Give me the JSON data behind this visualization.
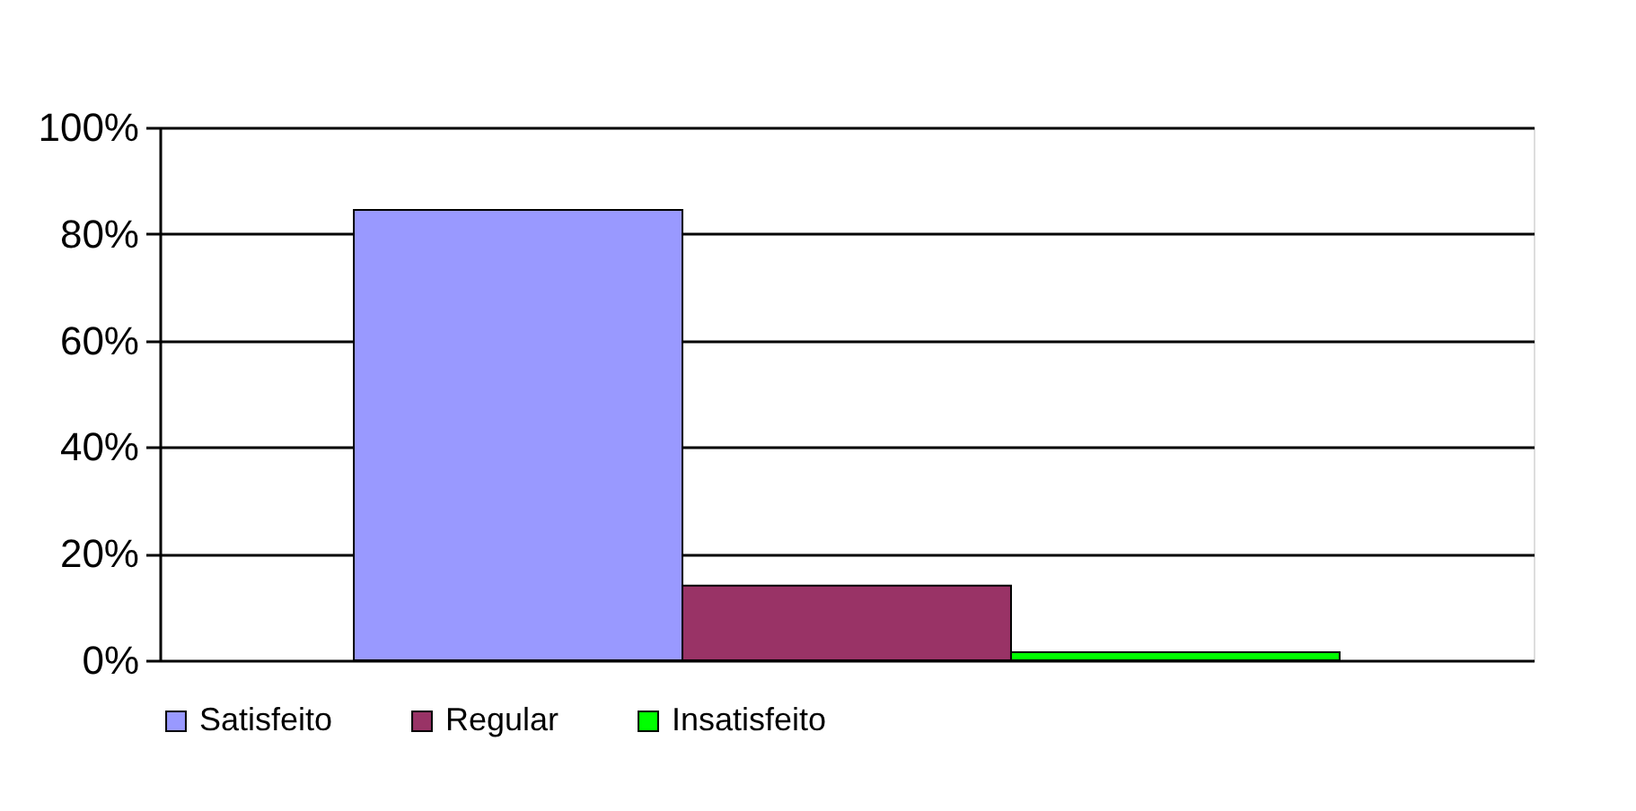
{
  "chart_data": {
    "type": "bar",
    "categories": [
      null
    ],
    "series": [
      {
        "name": "Satisfeito",
        "color": "#9999ff",
        "values": [
          84.5
        ]
      },
      {
        "name": "Regular",
        "color": "#993366",
        "values": [
          14
        ]
      },
      {
        "name": "Insatisfeito",
        "color": "#00ff00",
        "values": [
          1.5
        ]
      }
    ],
    "ylim": [
      0,
      100
    ],
    "yticks": [
      {
        "value": 0,
        "label": "0%"
      },
      {
        "value": 20,
        "label": "20%"
      },
      {
        "value": 40,
        "label": "40%"
      },
      {
        "value": 60,
        "label": "60%"
      },
      {
        "value": 80,
        "label": "80%"
      },
      {
        "value": 100,
        "label": "100%"
      }
    ],
    "grid": "y",
    "legend": "bottom",
    "tick_labels": "y"
  }
}
